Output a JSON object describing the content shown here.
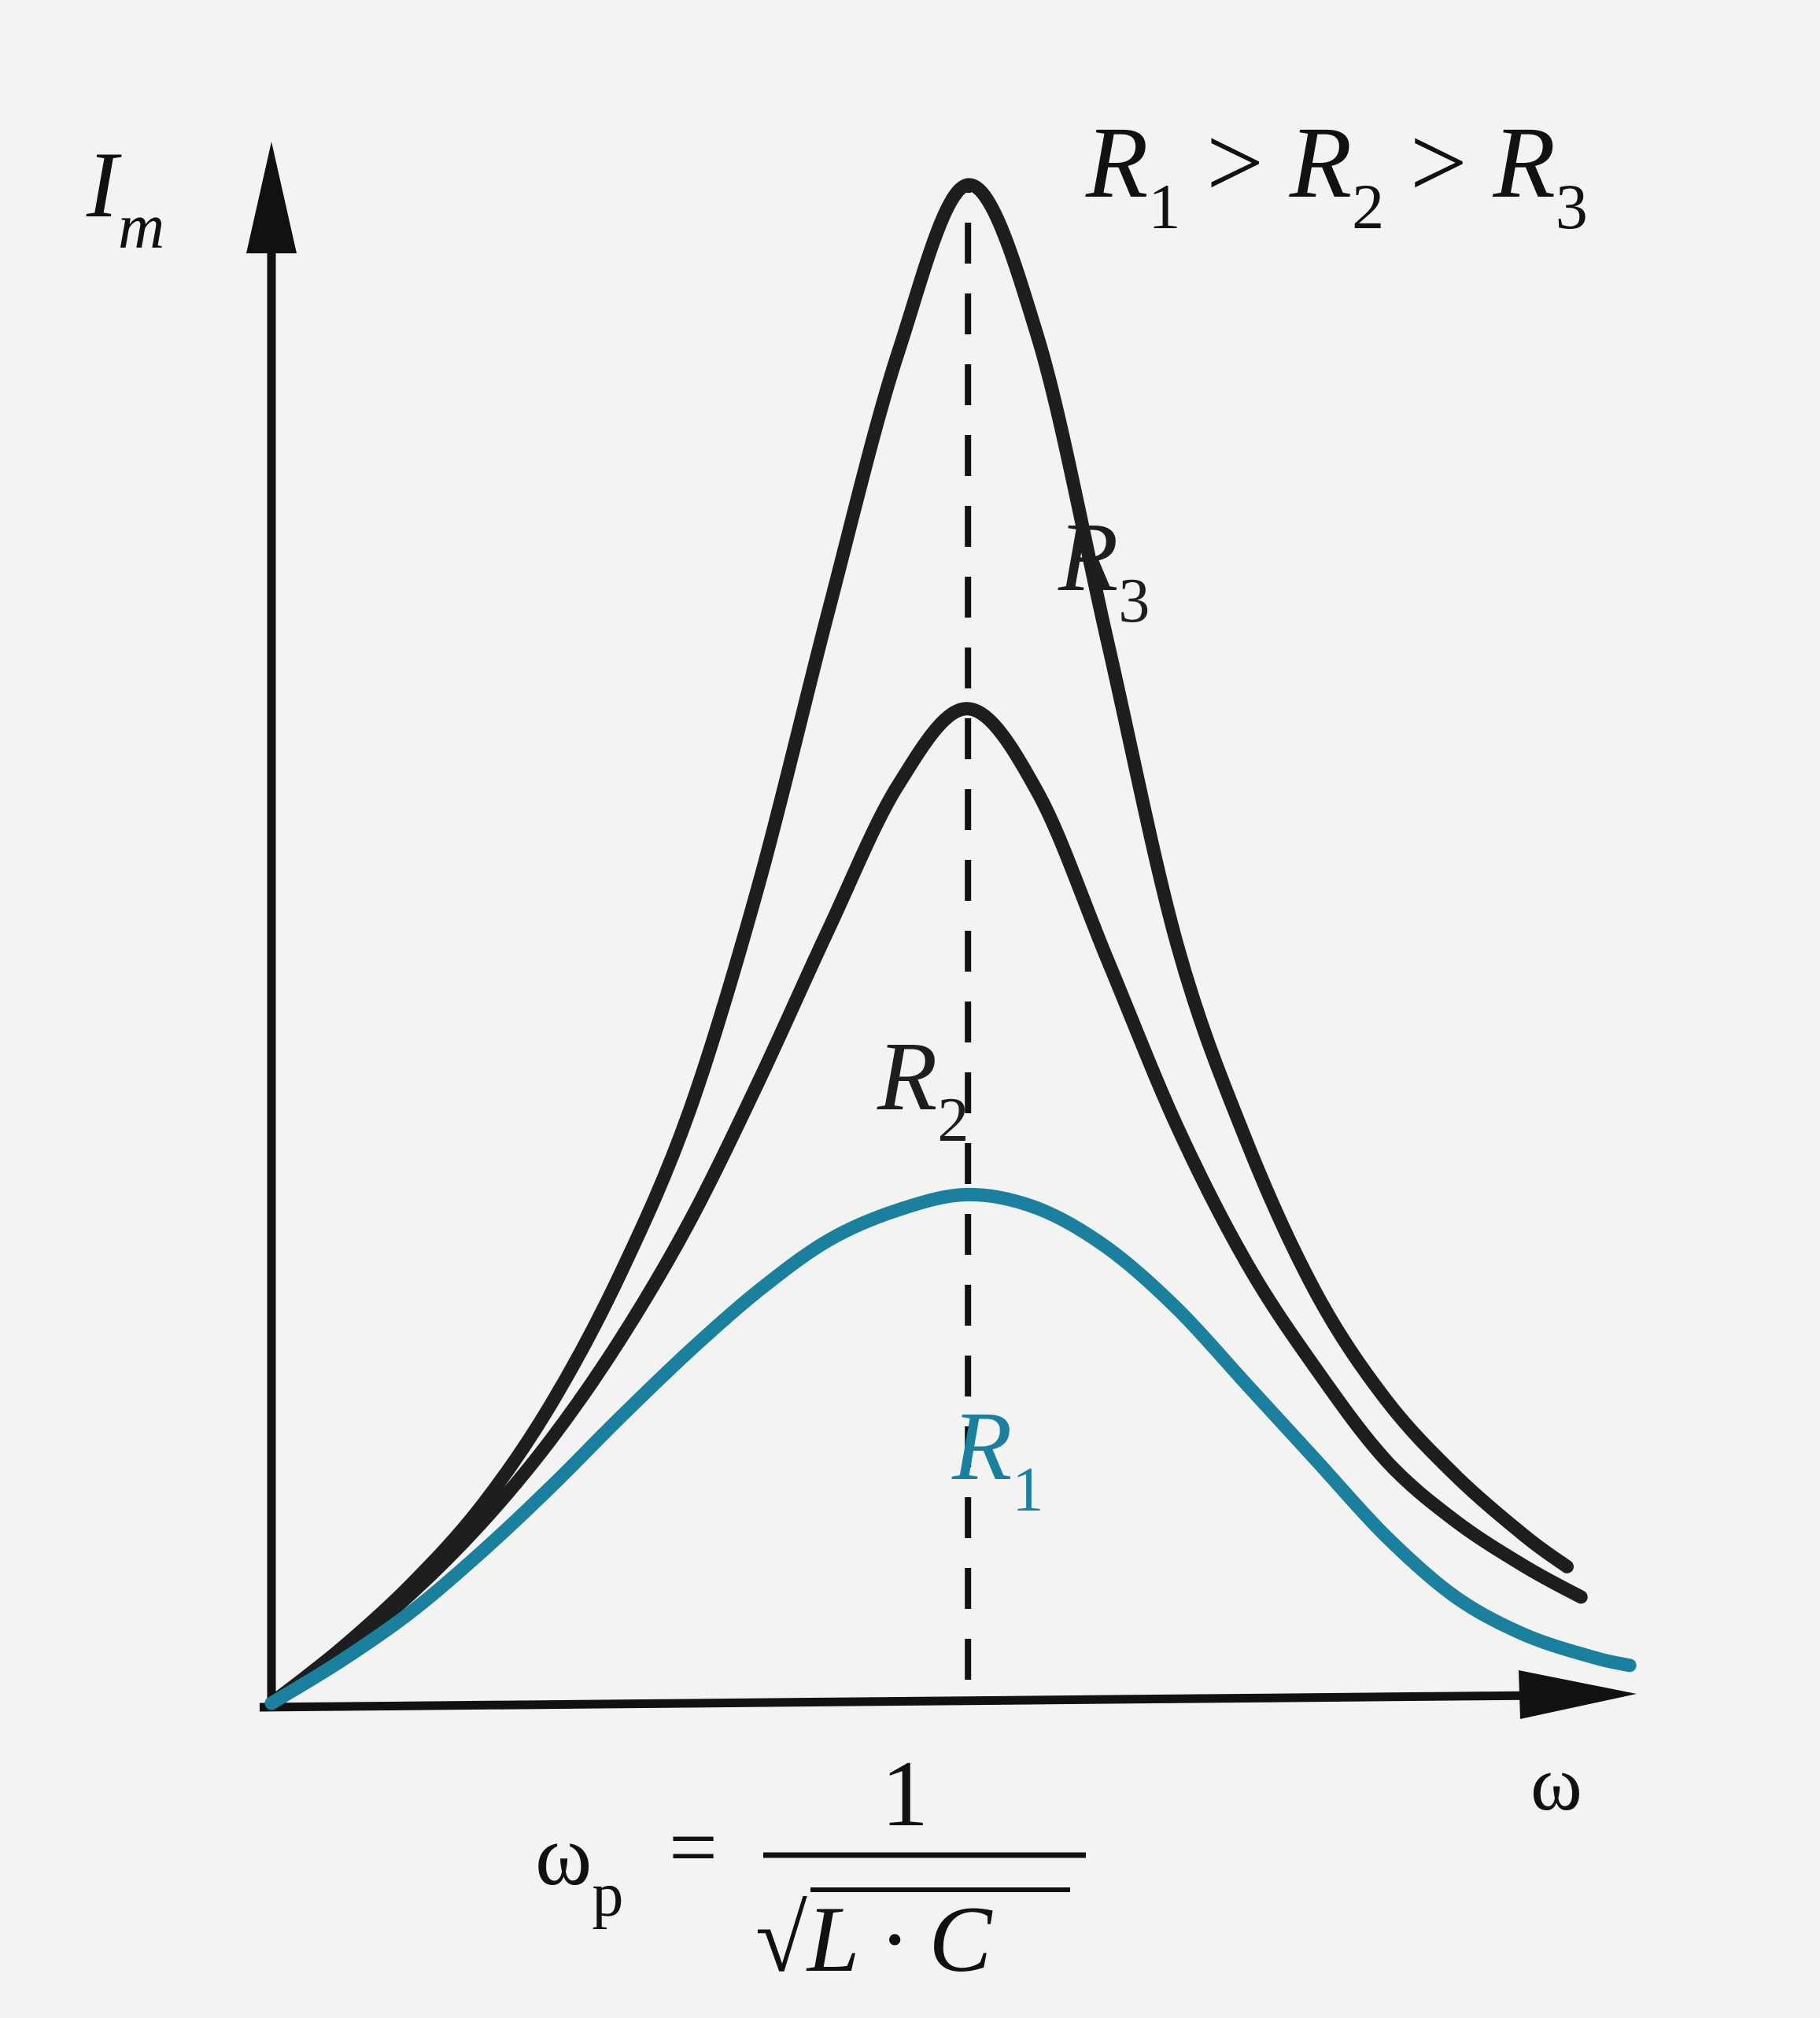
{
  "chart_data": {
    "type": "line",
    "title": "",
    "xlabel": "ω",
    "ylabel_main": "I",
    "ylabel_sub": "m",
    "xlim": [
      0,
      1.96
    ],
    "ylim": [
      0,
      1.0
    ],
    "relation": {
      "r1": "R",
      "s1": "1",
      "gt1": " > ",
      "r2": "R",
      "s2": "2",
      "gt2": " > ",
      "r3": "R",
      "s3": "3"
    },
    "resonance": {
      "x": 1.0,
      "omega": "ω",
      "omega_sub": "p",
      "eq": "=",
      "numerator": "1",
      "radical": "√",
      "denominator": "L · C"
    },
    "colors": {
      "R1": "#1b7f9e",
      "R2": "#1e1e1e",
      "R3": "#1e1e1e"
    },
    "series": [
      {
        "name": "R",
        "sub": "3",
        "color": "#1e1e1e",
        "x": [
          0,
          0.1,
          0.2,
          0.3,
          0.4,
          0.5,
          0.6,
          0.7,
          0.8,
          0.9,
          1.0,
          1.1,
          1.2,
          1.3,
          1.4,
          1.5,
          1.6,
          1.7,
          1.8,
          1.86
        ],
        "values": [
          0.0,
          0.036,
          0.078,
          0.129,
          0.196,
          0.282,
          0.39,
          0.54,
          0.72,
          0.89,
          1.0,
          0.9,
          0.7,
          0.5,
          0.37,
          0.27,
          0.2,
          0.15,
          0.11,
          0.09
        ]
      },
      {
        "name": "R",
        "sub": "2",
        "color": "#1e1e1e",
        "x": [
          0,
          0.1,
          0.2,
          0.3,
          0.4,
          0.5,
          0.6,
          0.7,
          0.8,
          0.9,
          1.0,
          1.1,
          1.2,
          1.3,
          1.4,
          1.5,
          1.6,
          1.7,
          1.8,
          1.88
        ],
        "values": [
          0.0,
          0.034,
          0.072,
          0.118,
          0.173,
          0.239,
          0.317,
          0.41,
          0.51,
          0.605,
          0.655,
          0.6,
          0.49,
          0.38,
          0.29,
          0.22,
          0.16,
          0.12,
          0.09,
          0.07
        ]
      },
      {
        "name": "R",
        "sub": "1",
        "color": "#1b7f9e",
        "x": [
          0,
          0.1,
          0.2,
          0.3,
          0.4,
          0.5,
          0.6,
          0.7,
          0.8,
          0.9,
          1.0,
          1.1,
          1.2,
          1.3,
          1.4,
          1.5,
          1.6,
          1.7,
          1.8,
          1.9,
          1.95
        ],
        "values": [
          0.0,
          0.028,
          0.06,
          0.099,
          0.142,
          0.188,
          0.232,
          0.272,
          0.305,
          0.325,
          0.335,
          0.326,
          0.3,
          0.26,
          0.21,
          0.16,
          0.11,
          0.07,
          0.045,
          0.03,
          0.025
        ]
      }
    ]
  }
}
